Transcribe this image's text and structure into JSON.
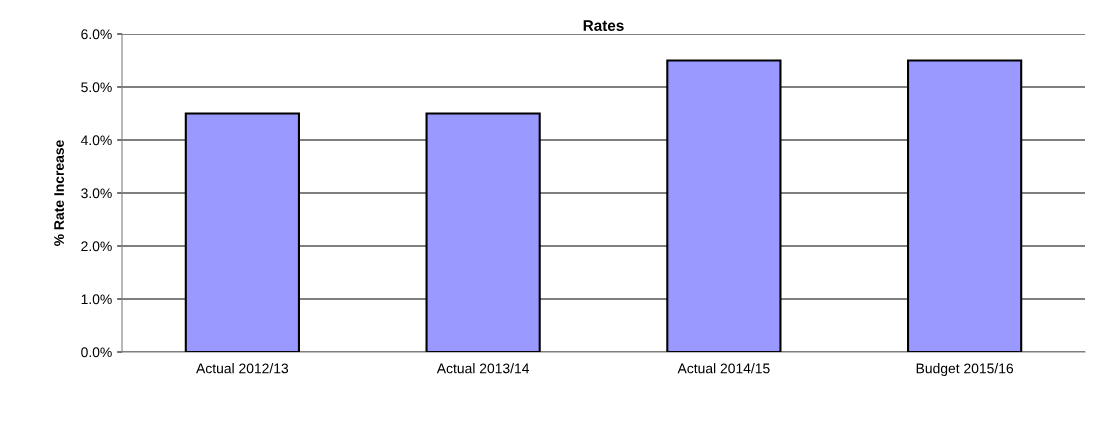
{
  "chart_data": {
    "type": "bar",
    "title": "Rates",
    "ylabel": "% Rate Increase",
    "categories": [
      "Actual 2012/13",
      "Actual 2013/14",
      "Actual 2014/15",
      "Budget 2015/16"
    ],
    "values": [
      4.5,
      4.5,
      5.5,
      5.5
    ],
    "color": "#9999ff",
    "ylim": [
      0,
      6
    ],
    "yticks": [
      {
        "value": 0,
        "label": "0.0%"
      },
      {
        "value": 1,
        "label": "1.0%"
      },
      {
        "value": 2,
        "label": "2.0%"
      },
      {
        "value": 3,
        "label": "3.0%"
      },
      {
        "value": 4,
        "label": "4.0%"
      },
      {
        "value": 5,
        "label": "5.0%"
      },
      {
        "value": 6,
        "label": "6.0%"
      }
    ],
    "grid": "y",
    "legend": false
  }
}
